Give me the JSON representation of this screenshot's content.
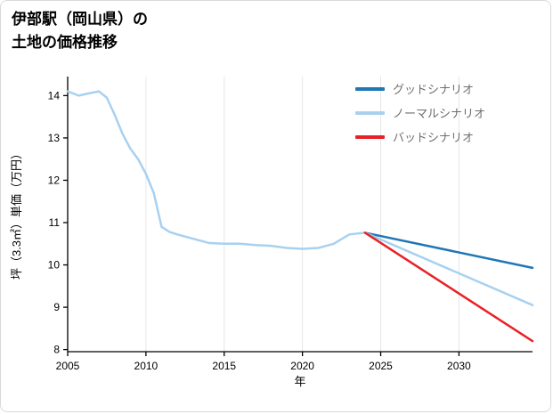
{
  "title": {
    "line1": "伊部駅（岡山県）の",
    "line2": "土地の価格推移"
  },
  "chart_data": {
    "type": "line",
    "title": "伊部駅（岡山県）の土地の価格推移",
    "xlabel": "年",
    "ylabel": "坪（3.3㎡）単価（万円）",
    "xlim": [
      2005,
      2034.7
    ],
    "ylim": [
      7.95,
      14.45
    ],
    "xticks": [
      2005,
      2010,
      2015,
      2020,
      2025,
      2030
    ],
    "yticks": [
      8,
      9,
      10,
      11,
      12,
      13,
      14
    ],
    "grid": "vertical",
    "legend_position": "upper right",
    "colors": {
      "good": "#1f77b4",
      "normal": "#a8d1f0",
      "bad": "#e82127",
      "historical": "#a8d1f0",
      "axis": "#000000",
      "gridline": "#e6e6e6"
    },
    "series": [
      {
        "id": "historical",
        "color": "#a8d1f0",
        "width": 2.5,
        "x": [
          2005,
          2005.7,
          2006.3,
          2007,
          2007.5,
          2008,
          2008.5,
          2009,
          2009.5,
          2010,
          2010.5,
          2011,
          2011.5,
          2012,
          2013,
          2014,
          2015,
          2016,
          2017,
          2018,
          2019,
          2020,
          2021,
          2022,
          2023,
          2024
        ],
        "y": [
          14.1,
          14.0,
          14.05,
          14.1,
          13.95,
          13.55,
          13.1,
          12.75,
          12.5,
          12.15,
          11.7,
          10.9,
          10.78,
          10.72,
          10.62,
          10.52,
          10.5,
          10.5,
          10.47,
          10.45,
          10.4,
          10.38,
          10.4,
          10.5,
          10.72,
          10.76
        ]
      },
      {
        "id": "good",
        "label": "グッドシナリオ",
        "color": "#1f77b4",
        "width": 2.5,
        "x": [
          2024,
          2034.7
        ],
        "y": [
          10.76,
          9.93
        ]
      },
      {
        "id": "normal",
        "label": "ノーマルシナリオ",
        "color": "#a8d1f0",
        "width": 2.5,
        "x": [
          2024,
          2034.7
        ],
        "y": [
          10.76,
          9.05
        ]
      },
      {
        "id": "bad",
        "label": "バッドシナリオ",
        "color": "#e82127",
        "width": 2.5,
        "x": [
          2024,
          2034.7
        ],
        "y": [
          10.76,
          8.2
        ]
      }
    ],
    "legend": [
      {
        "label": "グッドシナリオ",
        "color": "#1f77b4"
      },
      {
        "label": "ノーマルシナリオ",
        "color": "#a8d1f0"
      },
      {
        "label": "バッドシナリオ",
        "color": "#e82127"
      }
    ]
  }
}
